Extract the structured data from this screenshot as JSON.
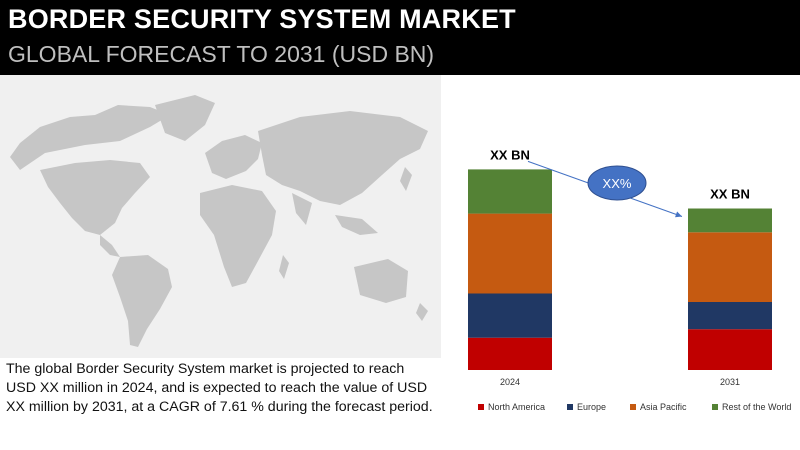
{
  "header": {
    "title": "BORDER SECURITY SYSTEM MARKET",
    "subtitle": "GLOBAL FORECAST TO 2031 (USD BN)"
  },
  "map": {
    "icon": "world-map-icon"
  },
  "description": "The global Border Security System market is projected to reach USD XX million in 2024, and is expected to reach the value of USD XX million by 2031, at a CAGR of 7.61 % during the forecast period.",
  "chart_data": {
    "type": "bar",
    "stacked": true,
    "categories": [
      "2024",
      "2031"
    ],
    "series": [
      {
        "name": "North America",
        "color": "#c00000",
        "values": [
          0.19,
          0.24
        ]
      },
      {
        "name": "Europe",
        "color": "#203864",
        "values": [
          0.26,
          0.16
        ]
      },
      {
        "name": "Asia Pacific",
        "color": "#c55a11",
        "values": [
          0.47,
          0.41
        ]
      },
      {
        "name": "Rest of the World",
        "color": "#548235",
        "values": [
          0.26,
          0.14
        ]
      }
    ],
    "bar_labels": [
      "XX BN",
      "XX BN"
    ],
    "growth_label": "XX%",
    "growth_color": "#4472c4",
    "legend_position": "bottom",
    "grid": false
  }
}
